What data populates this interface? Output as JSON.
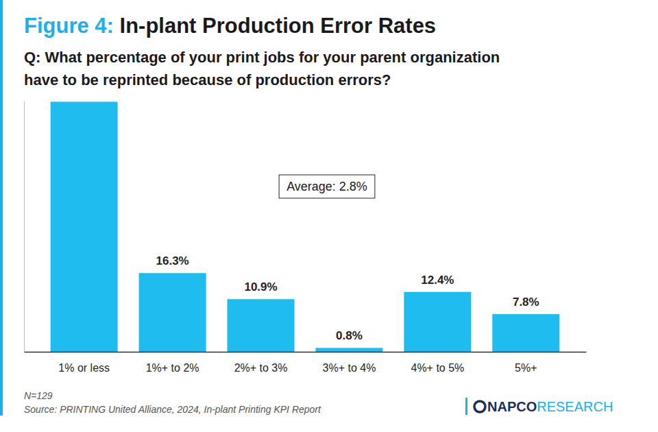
{
  "chart_data": {
    "type": "bar",
    "title": "Figure 4: In-plant Production Error Rates",
    "subtitle": [
      "Q: What percentage of your print jobs for your parent organization",
      "have to be reprinted because of production errors?"
    ],
    "categories": [
      "1% or less",
      "1%+ to 2%",
      "2%+ to 3%",
      "3%+ to 4%",
      "4%+ to 5%",
      "5%+"
    ],
    "values": [
      51.8,
      16.3,
      10.9,
      0.8,
      12.4,
      7.8
    ],
    "value_labels": [
      null,
      "16.3%",
      "10.9%",
      "0.8%",
      "12.4%",
      "7.8%"
    ],
    "data_labels": true,
    "color": "#1fbcef",
    "ylim": [
      0,
      52
    ],
    "tick_labels": "x",
    "grid": false,
    "annotation": "Average: 2.8%",
    "note": "N=129",
    "source": "Source: PRINTING United Alliance, 2024, In-plant Printing KPI Report",
    "logo": [
      "NAPCO",
      "RESEARCH"
    ]
  }
}
